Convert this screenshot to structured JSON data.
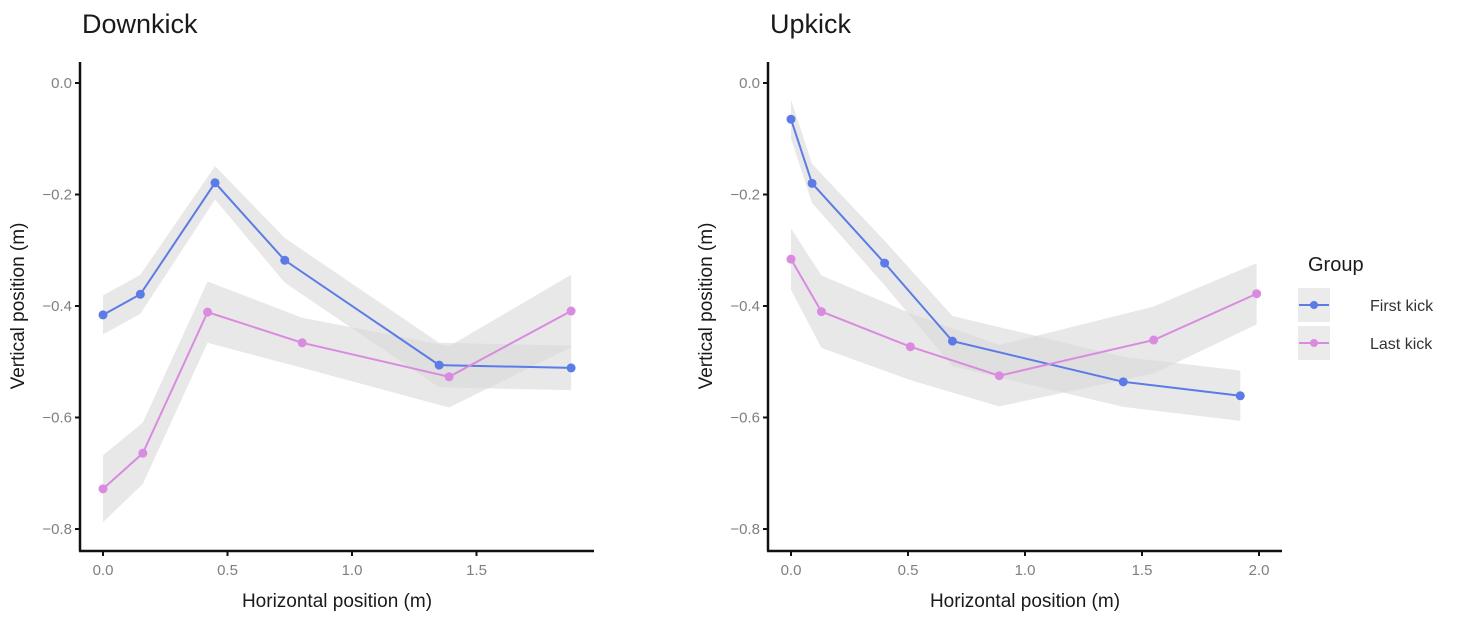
{
  "chart_data": [
    {
      "type": "line",
      "title": "Downkick",
      "xlabel": "Horizontal position (m)",
      "ylabel": "Vertical position (m)",
      "xlim": [
        -0.06,
        1.96
      ],
      "ylim": [
        -0.84,
        0.035
      ],
      "xticks": [
        0.0,
        0.5,
        1.0,
        1.5
      ],
      "xtick_labels": [
        "0.0",
        "0.5",
        "1.0",
        "1.5"
      ],
      "yticks": [
        0.0,
        -0.2,
        -0.4,
        -0.6,
        -0.8
      ],
      "ytick_labels": [
        "0.0",
        "−0.2",
        "−0.4",
        "−0.6",
        "−0.8"
      ],
      "grid": false,
      "series": [
        {
          "name": "First kick",
          "x": [
            0.0,
            0.15,
            0.45,
            0.73,
            1.35,
            1.88
          ],
          "y": [
            -0.416,
            -0.379,
            -0.179,
            -0.318,
            -0.506,
            -0.511
          ],
          "ci_halfwidth": [
            0.035,
            0.035,
            0.03,
            0.04,
            0.04,
            0.04
          ]
        },
        {
          "name": "Last kick",
          "x": [
            0.0,
            0.16,
            0.42,
            0.8,
            1.39,
            1.88
          ],
          "y": [
            -0.728,
            -0.664,
            -0.411,
            -0.466,
            -0.527,
            -0.409
          ],
          "ci_halfwidth": [
            0.06,
            0.055,
            0.055,
            0.045,
            0.055,
            0.065
          ]
        }
      ]
    },
    {
      "type": "line",
      "title": "Upkick",
      "xlabel": "Horizontal position (m)",
      "ylabel": "Vertical position (m)",
      "xlim": [
        -0.06,
        2.09
      ],
      "ylim": [
        -0.84,
        0.035
      ],
      "xticks": [
        0.0,
        0.5,
        1.0,
        1.5,
        2.0
      ],
      "xtick_labels": [
        "0.0",
        "0.5",
        "1.0",
        "1.5",
        "2.0"
      ],
      "yticks": [
        0.0,
        -0.2,
        -0.4,
        -0.6,
        -0.8
      ],
      "ytick_labels": [
        "0.0",
        "−0.2",
        "−0.4",
        "−0.6",
        "−0.8"
      ],
      "grid": false,
      "series": [
        {
          "name": "First kick",
          "x": [
            0.0,
            0.09,
            0.4,
            0.69,
            1.42,
            1.92
          ],
          "y": [
            -0.065,
            -0.18,
            -0.323,
            -0.463,
            -0.536,
            -0.561
          ],
          "ci_halfwidth": [
            0.035,
            0.035,
            0.04,
            0.045,
            0.045,
            0.045
          ]
        },
        {
          "name": "Last kick",
          "x": [
            0.0,
            0.13,
            0.51,
            0.89,
            1.55,
            1.99
          ],
          "y": [
            -0.316,
            -0.41,
            -0.473,
            -0.525,
            -0.461,
            -0.378
          ],
          "ci_halfwidth": [
            0.055,
            0.065,
            0.06,
            0.055,
            0.06,
            0.055
          ]
        }
      ]
    }
  ],
  "legend": {
    "title": "Group",
    "position": "right",
    "entries": [
      {
        "label": "First kick",
        "color": "#5b7be6"
      },
      {
        "label": "Last kick",
        "color": "#d98be0"
      }
    ]
  },
  "colors": {
    "first_kick": "#5b7be6",
    "last_kick": "#d98be0",
    "ribbon": "#d9d9d9",
    "axis": "#111111",
    "tick_label": "#7f7f7f"
  }
}
